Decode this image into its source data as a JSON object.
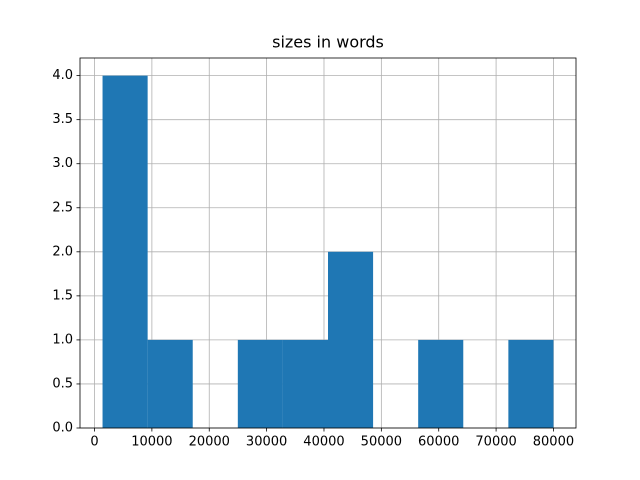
{
  "chart_data": {
    "type": "histogram",
    "title": "sizes in words",
    "bins": [
      1400,
      9260,
      17120,
      24980,
      32840,
      40700,
      48560,
      56420,
      64280,
      72140,
      80000
    ],
    "values": [
      4,
      1,
      0,
      1,
      1,
      2,
      0,
      1,
      0,
      1
    ],
    "color": "#1f77b4",
    "xlim": [
      -2530,
      83930
    ],
    "xticks": [
      0,
      10000,
      20000,
      30000,
      40000,
      50000,
      60000,
      70000,
      80000
    ],
    "ylim": [
      0,
      4.2
    ],
    "yticks": [
      {
        "value": 0,
        "label": "0.0"
      },
      0.5,
      {
        "value": 1,
        "label": "1.0"
      },
      1.5,
      {
        "value": 2,
        "label": "2.0"
      },
      2.5,
      {
        "value": 3,
        "label": "3.0"
      },
      3.5,
      {
        "value": 4,
        "label": "4.0"
      }
    ],
    "grid": true
  }
}
